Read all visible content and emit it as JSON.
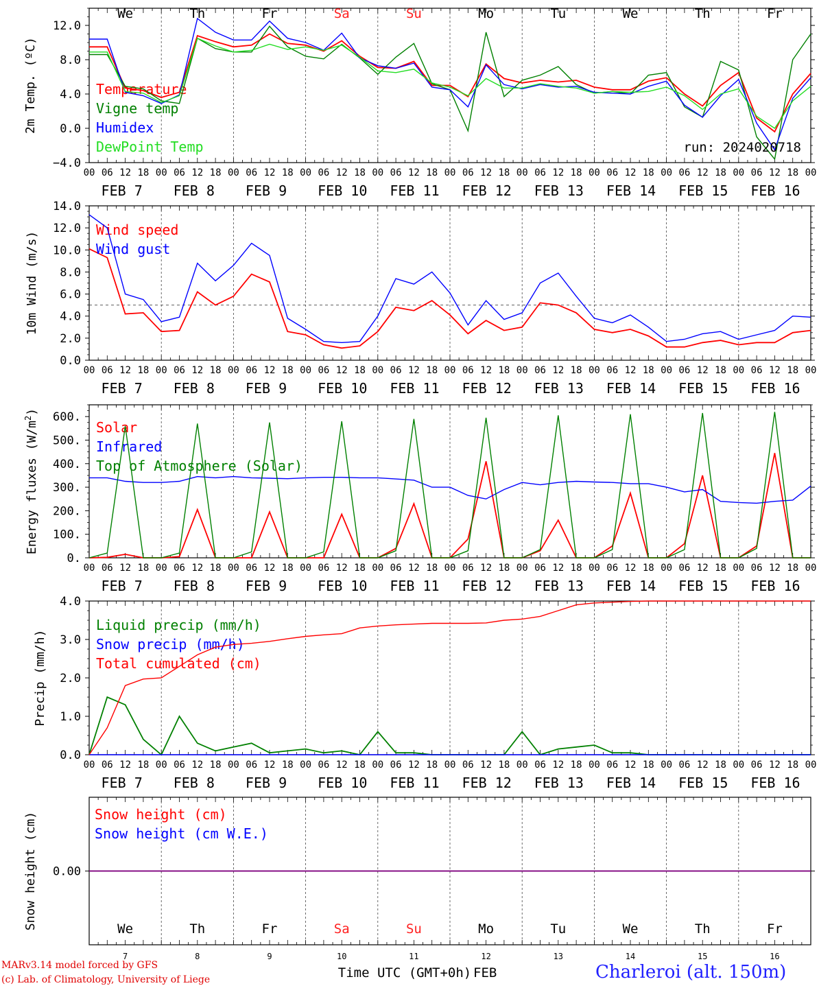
{
  "credits": {
    "line1": "MARv3.14 model forced by GFS",
    "line2": "(c) Lab. of Climatology, University of Liege"
  },
  "location": "Charleroi (alt. 150m)",
  "x_axis": {
    "title": "Time UTC (GMT+0h)",
    "month": "FEB",
    "hour_ticks": [
      "00",
      "06",
      "12",
      "18"
    ],
    "days": [
      {
        "label": "7",
        "weekday": "We",
        "weekend": false
      },
      {
        "label": "8",
        "weekday": "Th",
        "weekend": false
      },
      {
        "label": "9",
        "weekday": "Fr",
        "weekend": false
      },
      {
        "label": "10",
        "weekday": "Sa",
        "weekend": true
      },
      {
        "label": "11",
        "weekday": "Su",
        "weekend": true
      },
      {
        "label": "12",
        "weekday": "Mo",
        "weekend": false
      },
      {
        "label": "13",
        "weekday": "Tu",
        "weekend": false
      },
      {
        "label": "14",
        "weekday": "We",
        "weekend": false
      },
      {
        "label": "15",
        "weekday": "Th",
        "weekend": false
      },
      {
        "label": "16",
        "weekday": "Fr",
        "weekend": false
      }
    ]
  },
  "colors": {
    "red": "#ff0000",
    "green": "#008000",
    "blue": "#0000ff",
    "lightgreen": "#22dd22",
    "purple": "#7f007f",
    "weekend": "#ff2020"
  },
  "chart_data": [
    {
      "id": "temperature",
      "type": "line",
      "ylabel": "2m Temp. (ºC)",
      "ylim": [
        -4,
        14
      ],
      "yticks": [
        -4,
        0,
        4,
        8,
        12
      ],
      "tick_decimals": 1,
      "run_label": "run: 2024020718",
      "x_unit": "hours since FEB 7 00 UTC",
      "x": [
        0,
        6,
        12,
        18,
        24,
        30,
        36,
        42,
        48,
        54,
        60,
        66,
        72,
        78,
        84,
        90,
        96,
        102,
        108,
        114,
        120,
        126,
        132,
        138,
        144,
        150,
        156,
        162,
        168,
        174,
        180,
        186,
        192,
        198,
        204,
        210,
        216,
        222,
        228,
        234,
        240
      ],
      "series": [
        {
          "name": "Temperature",
          "color": "#ff0000",
          "values": [
            9.5,
            9.5,
            4.7,
            4.4,
            3.6,
            4.2,
            10.8,
            10.1,
            9.5,
            9.7,
            11.0,
            9.9,
            9.7,
            9.0,
            10.2,
            8.4,
            7.1,
            7.0,
            7.8,
            5.0,
            5.0,
            3.7,
            7.5,
            5.8,
            5.3,
            5.6,
            5.4,
            5.6,
            4.8,
            4.5,
            4.5,
            5.5,
            5.9,
            4.0,
            2.6,
            5.0,
            6.5,
            1.2,
            -0.4,
            4.0,
            6.4
          ]
        },
        {
          "name": "Vigne temp",
          "color": "#008000",
          "values": [
            8.6,
            8.6,
            4.9,
            4.6,
            3.2,
            2.9,
            10.5,
            9.3,
            8.9,
            8.9,
            11.9,
            9.5,
            8.4,
            8.1,
            9.8,
            8.2,
            6.3,
            8.3,
            9.9,
            5.2,
            4.5,
            -0.3,
            11.2,
            3.7,
            5.6,
            6.2,
            7.2,
            5.1,
            4.1,
            4.3,
            4.0,
            6.2,
            6.5,
            2.5,
            1.3,
            7.8,
            6.8,
            -1.0,
            -3.6,
            8.0,
            11.0
          ]
        },
        {
          "name": "Humidex",
          "color": "#0000ff",
          "values": [
            10.4,
            10.4,
            4.2,
            3.8,
            2.9,
            3.9,
            12.8,
            11.2,
            10.3,
            10.3,
            12.5,
            10.5,
            10.0,
            9.1,
            11.1,
            8.2,
            7.3,
            7.0,
            7.6,
            4.8,
            4.5,
            2.5,
            7.4,
            5.1,
            4.6,
            5.1,
            4.8,
            4.9,
            4.2,
            4.1,
            4.0,
            4.9,
            5.5,
            2.7,
            1.3,
            3.8,
            5.7,
            0.6,
            -2.5,
            3.5,
            5.9
          ]
        },
        {
          "name": "DewPoint Temp",
          "color": "#22dd22",
          "values": [
            8.9,
            8.9,
            4.3,
            4.1,
            3.0,
            3.8,
            10.5,
            9.6,
            8.9,
            9.1,
            9.8,
            9.2,
            9.5,
            9.1,
            9.7,
            8.3,
            6.7,
            6.5,
            6.9,
            5.3,
            4.8,
            3.8,
            5.8,
            4.7,
            4.7,
            5.2,
            4.9,
            4.7,
            4.1,
            4.3,
            4.2,
            4.3,
            4.8,
            3.8,
            2.2,
            4.0,
            4.6,
            1.4,
            0.0,
            3.2,
            4.9
          ]
        }
      ]
    },
    {
      "id": "wind",
      "type": "line",
      "ylabel": "10m Wind (m/s)",
      "ylim": [
        0,
        14
      ],
      "yticks": [
        0,
        2,
        4,
        6,
        8,
        10,
        12,
        14
      ],
      "tick_decimals": 1,
      "reference_line": 5,
      "x_unit": "hours since FEB 7 00 UTC",
      "x": [
        0,
        6,
        12,
        18,
        24,
        30,
        36,
        42,
        48,
        54,
        60,
        66,
        72,
        78,
        84,
        90,
        96,
        102,
        108,
        114,
        120,
        126,
        132,
        138,
        144,
        150,
        156,
        162,
        168,
        174,
        180,
        186,
        192,
        198,
        204,
        210,
        216,
        222,
        228,
        234,
        240
      ],
      "series": [
        {
          "name": "Wind speed",
          "color": "#ff0000",
          "values": [
            10.1,
            9.3,
            4.2,
            4.3,
            2.6,
            2.7,
            6.2,
            5.0,
            5.8,
            7.8,
            7.1,
            2.6,
            2.3,
            1.4,
            1.1,
            1.3,
            2.6,
            4.8,
            4.5,
            5.4,
            4.1,
            2.4,
            3.6,
            2.7,
            3.0,
            5.2,
            5.0,
            4.3,
            2.8,
            2.5,
            2.8,
            2.2,
            1.2,
            1.2,
            1.6,
            1.8,
            1.4,
            1.6,
            1.6,
            2.5,
            2.7
          ]
        },
        {
          "name": "Wind gust",
          "color": "#0000ff",
          "values": [
            13.2,
            12.0,
            6.0,
            5.5,
            3.5,
            3.9,
            8.8,
            7.2,
            8.6,
            10.6,
            9.5,
            3.8,
            2.8,
            1.7,
            1.6,
            1.7,
            4.0,
            7.4,
            6.9,
            8.0,
            6.1,
            3.2,
            5.4,
            3.7,
            4.3,
            7.0,
            7.9,
            5.8,
            3.8,
            3.4,
            4.1,
            3.0,
            1.7,
            1.9,
            2.4,
            2.6,
            1.9,
            2.3,
            2.7,
            4.0,
            3.9
          ]
        }
      ]
    },
    {
      "id": "energy",
      "type": "line",
      "ylabel": "Energy fluxes (W/m²)",
      "ylim": [
        0,
        650
      ],
      "yticks": [
        0,
        100,
        200,
        300,
        400,
        500,
        600
      ],
      "tick_decimals": 0,
      "x_unit": "hours since FEB 7 00 UTC",
      "x": [
        0,
        6,
        12,
        18,
        24,
        30,
        36,
        42,
        48,
        54,
        60,
        66,
        72,
        78,
        84,
        90,
        96,
        102,
        108,
        114,
        120,
        126,
        132,
        138,
        144,
        150,
        156,
        162,
        168,
        174,
        180,
        186,
        192,
        198,
        204,
        210,
        216,
        222,
        228,
        234,
        240
      ],
      "series": [
        {
          "name": "Solar",
          "color": "#ff0000",
          "values": [
            0,
            2,
            15,
            0,
            0,
            5,
            205,
            0,
            0,
            0,
            195,
            0,
            0,
            0,
            185,
            0,
            0,
            40,
            230,
            0,
            0,
            80,
            410,
            0,
            0,
            30,
            160,
            0,
            0,
            50,
            275,
            0,
            0,
            60,
            350,
            0,
            0,
            50,
            445,
            0,
            0
          ]
        },
        {
          "name": "Infrared",
          "color": "#0000ff",
          "values": [
            340,
            340,
            325,
            320,
            320,
            325,
            345,
            340,
            345,
            340,
            338,
            336,
            340,
            342,
            342,
            340,
            340,
            335,
            330,
            300,
            300,
            265,
            250,
            290,
            320,
            310,
            320,
            325,
            322,
            320,
            315,
            315,
            300,
            280,
            290,
            240,
            235,
            232,
            240,
            245,
            305
          ]
        },
        {
          "name": "Top of Atmosphere (Solar)",
          "color": "#008000",
          "values": [
            0,
            20,
            560,
            0,
            0,
            20,
            570,
            0,
            0,
            25,
            575,
            0,
            0,
            25,
            580,
            0,
            0,
            30,
            590,
            0,
            0,
            30,
            595,
            0,
            0,
            35,
            605,
            0,
            0,
            35,
            610,
            0,
            0,
            35,
            615,
            0,
            0,
            40,
            620,
            0,
            0
          ]
        }
      ]
    },
    {
      "id": "precip",
      "type": "line",
      "ylabel": "Precip (mm/h)",
      "ylim": [
        0,
        4
      ],
      "yticks": [
        0,
        1,
        2,
        3,
        4
      ],
      "tick_decimals": 1,
      "x_unit": "hours since FEB 7 00 UTC",
      "x": [
        0,
        6,
        12,
        18,
        24,
        30,
        36,
        42,
        48,
        54,
        60,
        66,
        72,
        78,
        84,
        90,
        96,
        102,
        108,
        114,
        120,
        126,
        132,
        138,
        144,
        150,
        156,
        162,
        168,
        174,
        180,
        186,
        192,
        198,
        204,
        210,
        216,
        222,
        228,
        234,
        240
      ],
      "series": [
        {
          "name": "Liquid precip (mm/h)",
          "color": "#008000",
          "values": [
            0,
            1.5,
            1.3,
            0.4,
            0,
            1.0,
            0.3,
            0.1,
            0.2,
            0.3,
            0.05,
            0.1,
            0.15,
            0.05,
            0.1,
            0,
            0.6,
            0.05,
            0.05,
            0,
            0,
            0,
            0,
            0,
            0.6,
            0,
            0.15,
            0.2,
            0.25,
            0.05,
            0.05,
            0,
            0,
            0,
            0,
            0,
            0,
            0,
            0,
            0,
            0
          ]
        },
        {
          "name": "Snow precip (mm/h)",
          "color": "#0000ff",
          "values": [
            0,
            0,
            0,
            0,
            0,
            0,
            0,
            0,
            0,
            0,
            0,
            0,
            0,
            0,
            0,
            0,
            0,
            0,
            0,
            0,
            0,
            0,
            0,
            0,
            0,
            0,
            0,
            0,
            0,
            0,
            0,
            0,
            0,
            0,
            0,
            0,
            0,
            0,
            0,
            0,
            0
          ]
        },
        {
          "name": "Total cumulated (cm)",
          "color": "#ff0000",
          "values": [
            0,
            0.7,
            1.8,
            1.97,
            2.0,
            2.3,
            2.6,
            2.8,
            2.87,
            2.9,
            2.95,
            3.02,
            3.08,
            3.12,
            3.15,
            3.3,
            3.35,
            3.38,
            3.4,
            3.42,
            3.42,
            3.42,
            3.43,
            3.5,
            3.53,
            3.6,
            3.75,
            3.9,
            3.95,
            3.97,
            3.99,
            4.0,
            4.0,
            4.0,
            4.0,
            4.0,
            4.0,
            4.0,
            4.0,
            4.0,
            4.0
          ]
        }
      ]
    },
    {
      "id": "snow",
      "type": "line",
      "ylabel": "Snow height (cm)",
      "ylim": [
        -1,
        1
      ],
      "yticks": [
        0
      ],
      "tick_decimals": 2,
      "x_unit": "hours since FEB 7 00 UTC",
      "x": [
        0,
        240
      ],
      "series": [
        {
          "name": "Snow height (cm)",
          "color": "#ff0000",
          "values": [
            0,
            0
          ]
        },
        {
          "name": "Snow height (cm W.E.)",
          "color": "#0000ff",
          "values": [
            0,
            0
          ]
        }
      ]
    }
  ]
}
